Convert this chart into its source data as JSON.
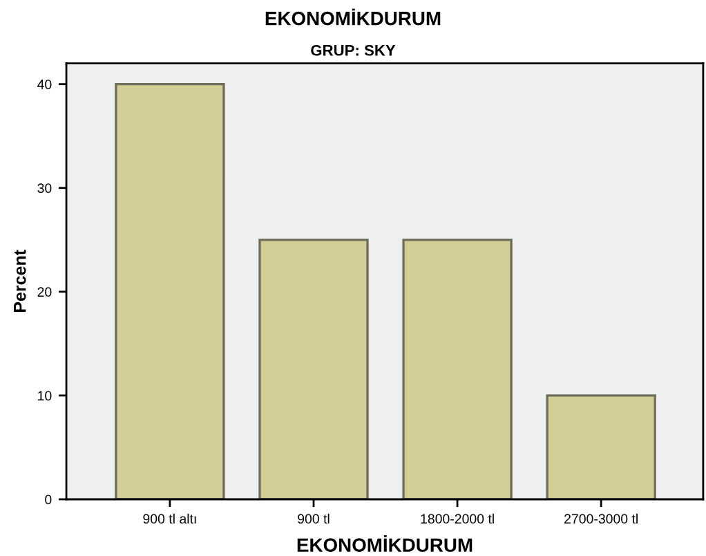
{
  "chart_data": {
    "type": "bar",
    "title": "EKONOMİKDURUM",
    "subtitle": "GRUP: SKY",
    "xlabel": "EKONOMİKDURUM",
    "ylabel": "Percent",
    "categories": [
      "900 tl altı",
      "900 tl",
      "1800-2000 tl",
      "2700-3000 tl"
    ],
    "values": [
      40,
      25,
      25,
      10
    ],
    "color": "#d3ce97",
    "ylim": [
      0,
      42
    ],
    "yticks": [
      0,
      10,
      20,
      30,
      40
    ],
    "grid": false
  }
}
